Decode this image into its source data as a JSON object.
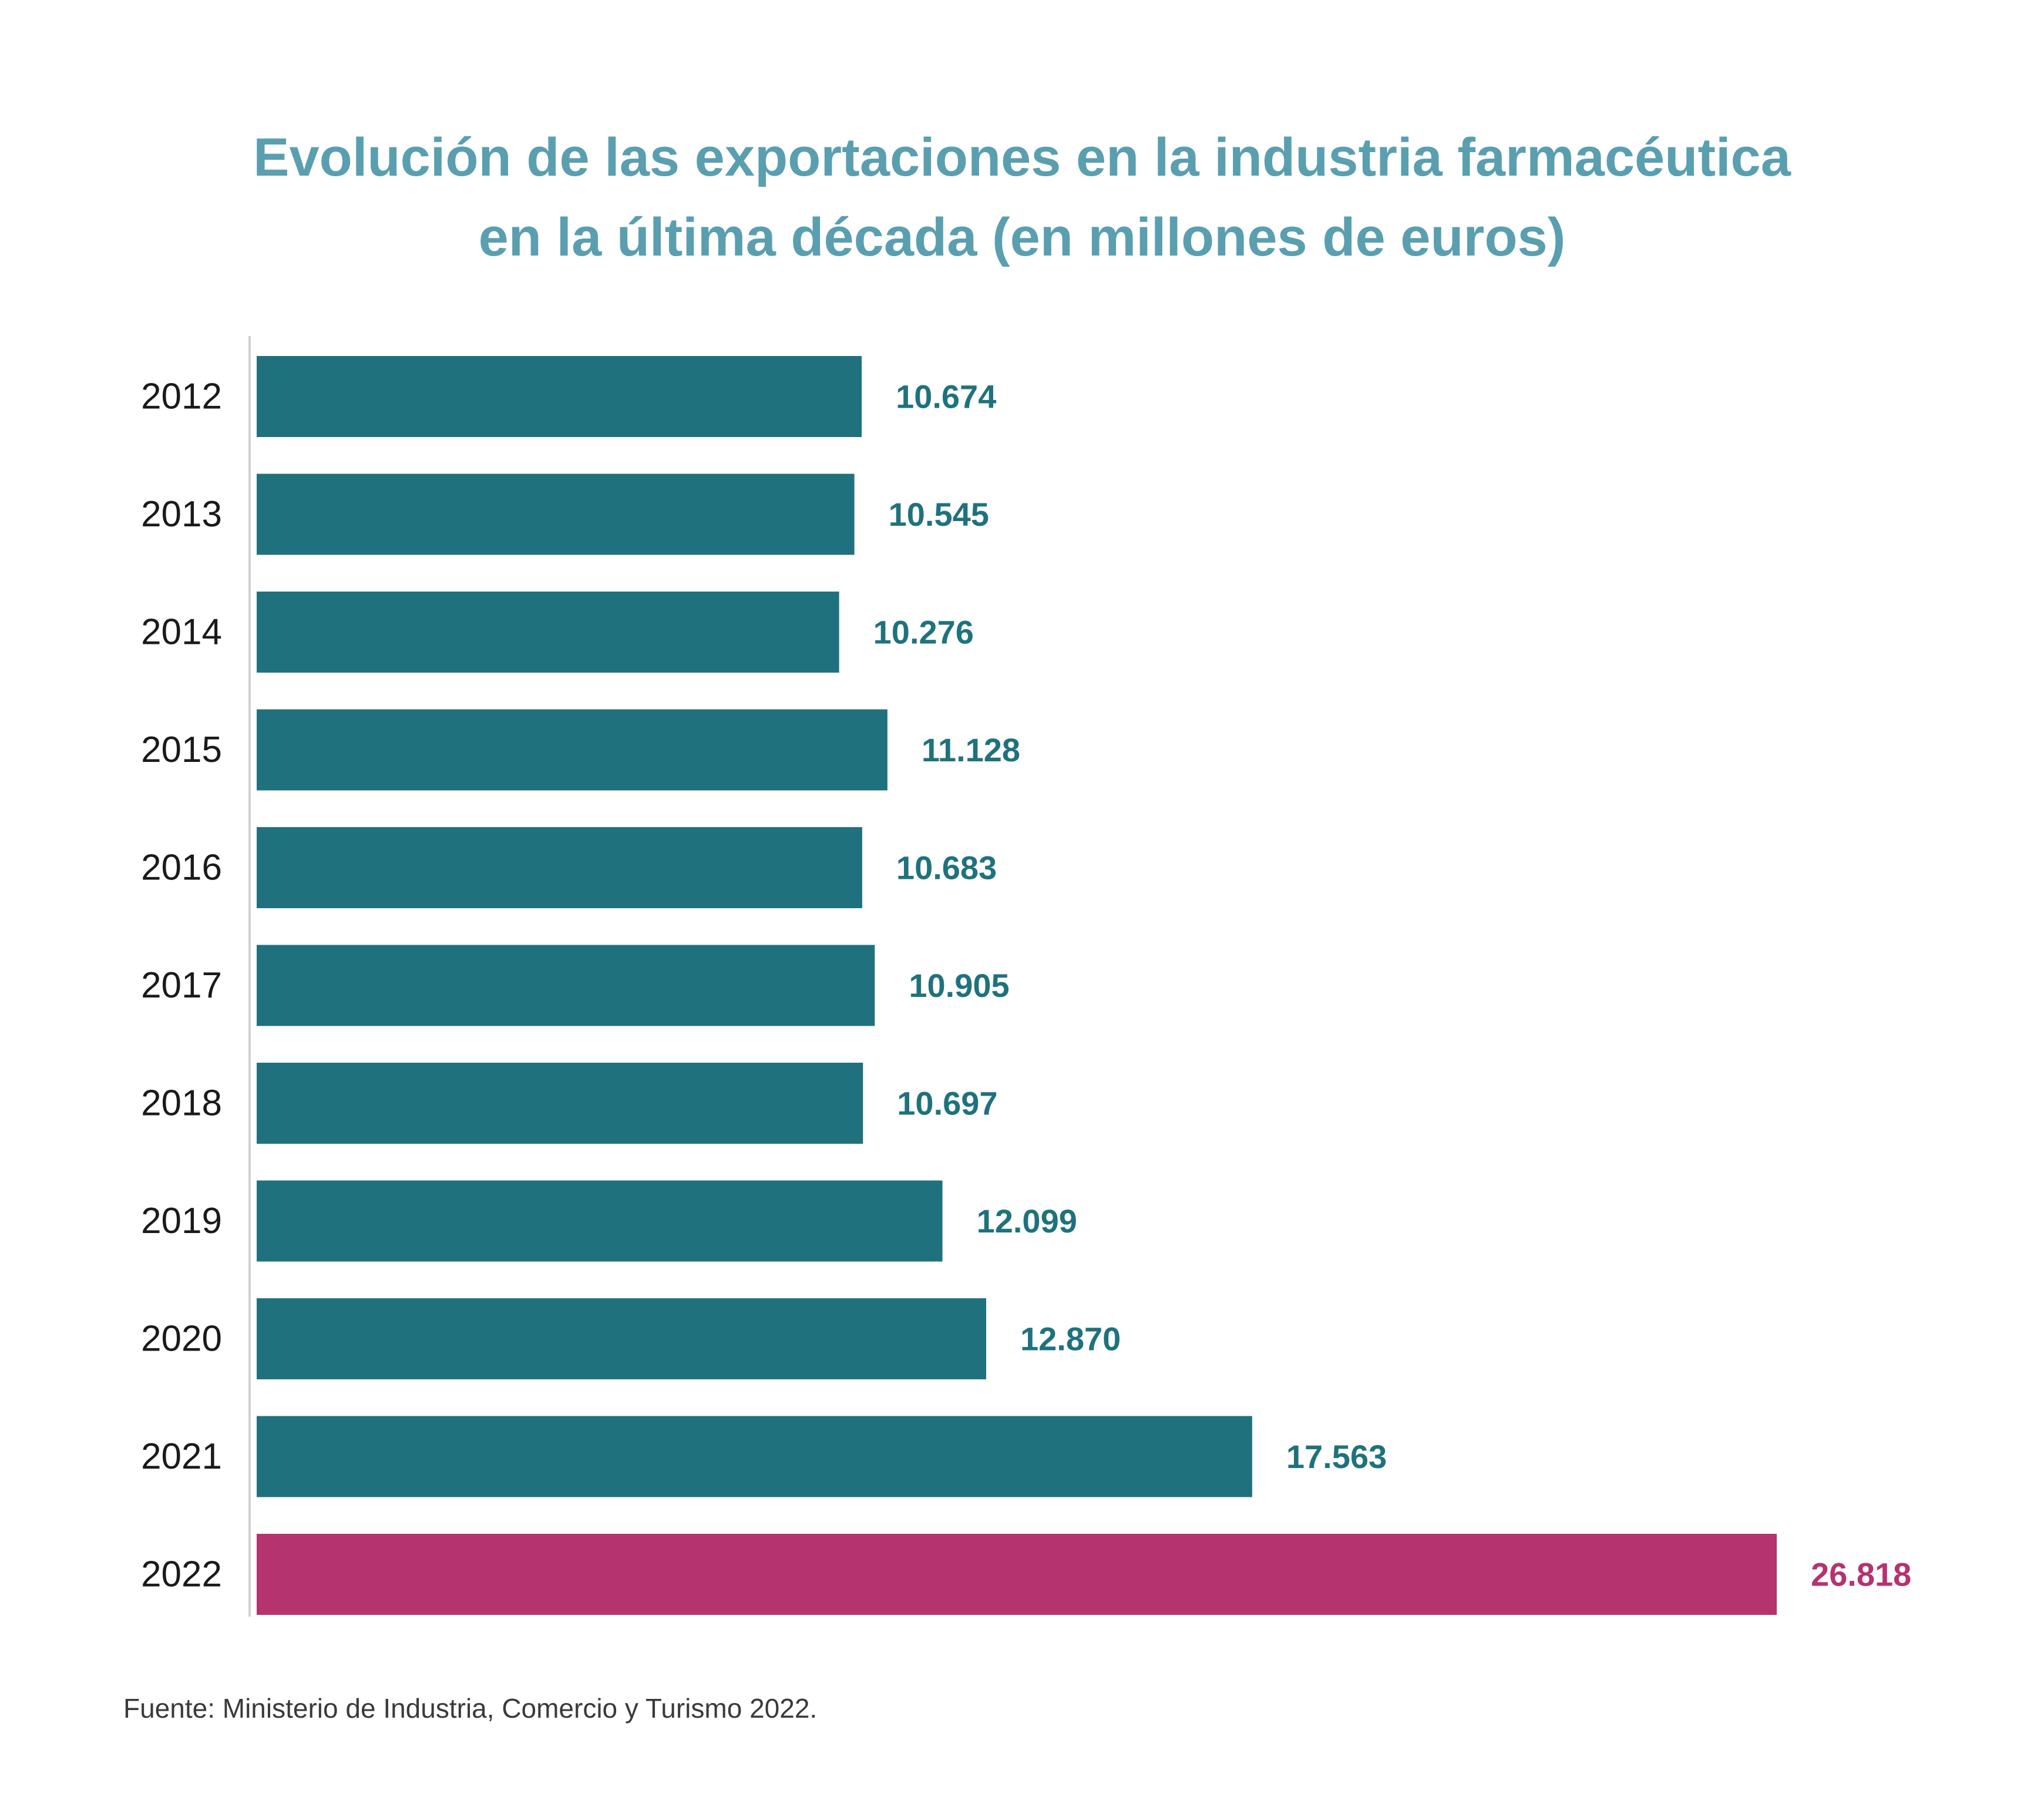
{
  "title_lines": [
    "Evolución de las exportaciones en la industria farmacéutica",
    "en la última década (en millones de euros)"
  ],
  "source": "Fuente: Ministerio de Industria, Comercio y Turismo 2022.",
  "colors": {
    "title": "#5a9fb0",
    "bar": "#1f727d",
    "highlight": "#b5336f",
    "axis": "#d0d0d0",
    "tick_text": "#1a1a1a"
  },
  "chart_data": {
    "type": "bar",
    "orientation": "horizontal",
    "title": "Evolución de las exportaciones en la industria farmacéutica en la última década (en millones de euros)",
    "categories": [
      "2012",
      "2013",
      "2014",
      "2015",
      "2016",
      "2017",
      "2018",
      "2019",
      "2020",
      "2021",
      "2022"
    ],
    "values": [
      10674,
      10545,
      10276,
      11128,
      10683,
      10905,
      10697,
      12099,
      12870,
      17563,
      26818
    ],
    "labels": [
      "10.674",
      "10.545",
      "10.276",
      "11.128",
      "10.683",
      "10.905",
      "10.697",
      "12.099",
      "12.870",
      "17.563",
      "26.818"
    ],
    "highlight_category": "2022",
    "xlim": [
      0,
      26818
    ],
    "grid": false,
    "xlabel": "",
    "ylabel": ""
  }
}
